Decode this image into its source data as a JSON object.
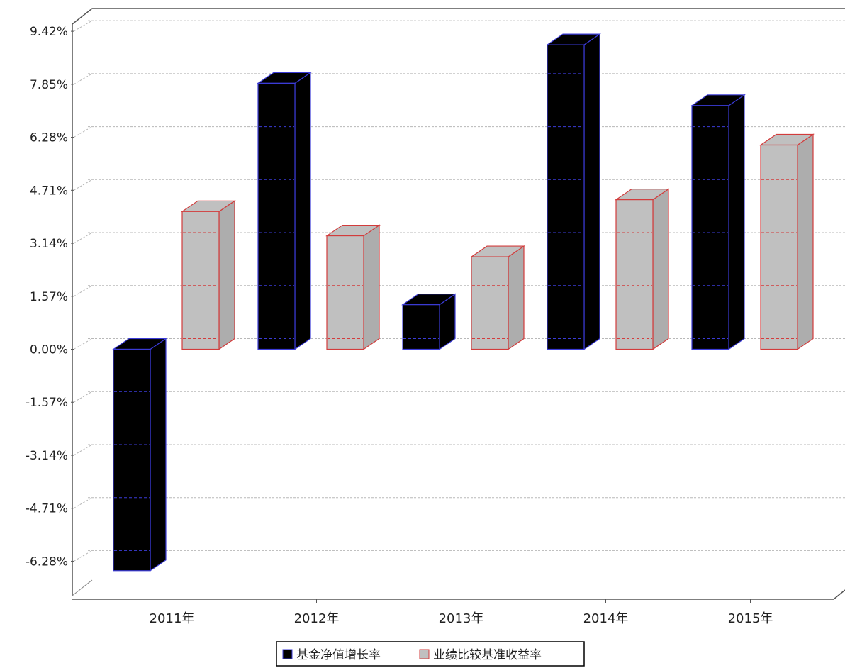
{
  "chart_data": {
    "type": "bar",
    "categories": [
      "2011年",
      "2012年",
      "2013年",
      "2014年",
      "2015年"
    ],
    "series": [
      {
        "name": "基金净值增长率",
        "values": [
          -6.56,
          7.88,
          1.32,
          9.02,
          7.22
        ],
        "fill": "#000000",
        "stroke": "#3b3bd6"
      },
      {
        "name": "业绩比较基准收益率",
        "values": [
          4.08,
          3.36,
          2.74,
          4.43,
          6.05
        ],
        "fill": "#c0c0c0",
        "stroke": "#d23c3c"
      }
    ],
    "yticks": [
      9.42,
      7.85,
      6.28,
      4.71,
      3.14,
      1.57,
      0.0,
      -1.57,
      -3.14,
      -4.71,
      -6.28
    ],
    "ytick_labels": [
      "9.42%",
      "7.85%",
      "6.28%",
      "4.71%",
      "3.14%",
      "1.57%",
      "0.00%",
      "-1.57%",
      "-3.14%",
      "-4.71%",
      "-6.28%"
    ],
    "ylim": [
      -7.28,
      10.06
    ],
    "grid": true,
    "legend_position": "bottom",
    "three_d": true
  }
}
